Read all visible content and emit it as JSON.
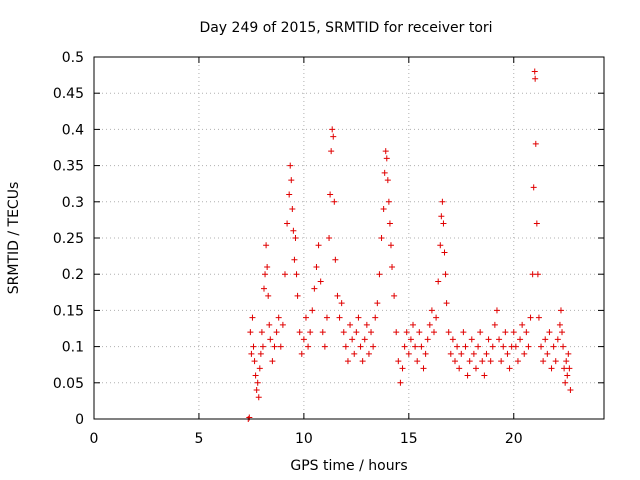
{
  "chart_data": {
    "type": "scatter",
    "title": "Day 249 of 2015, SRMTID for receiver tori",
    "xlabel": "GPS time / hours",
    "ylabel": "SRMTID / TECUs",
    "xlim": [
      0,
      24.3
    ],
    "ylim": [
      0,
      0.5
    ],
    "xticks": [
      "0",
      "5",
      "10",
      "15",
      "20"
    ],
    "xtick_values": [
      0,
      5,
      10,
      15,
      20
    ],
    "yticks": [
      "0",
      "0.05",
      "0.1",
      "0.15",
      "0.2",
      "0.25",
      "0.3",
      "0.35",
      "0.4",
      "0.45",
      "0.5"
    ],
    "ytick_values": [
      0,
      0.05,
      0.1,
      0.15,
      0.2,
      0.25,
      0.3,
      0.35,
      0.4,
      0.45,
      0.5
    ],
    "grid": true,
    "marker": "+",
    "color": "#e00000",
    "series": [
      {
        "points": [
          [
            7.35,
            0.0
          ],
          [
            7.4,
            0.002
          ],
          [
            7.45,
            0.12
          ],
          [
            7.5,
            0.09
          ],
          [
            7.55,
            0.14
          ],
          [
            7.6,
            0.1
          ],
          [
            7.65,
            0.08
          ],
          [
            7.7,
            0.06
          ],
          [
            7.75,
            0.04
          ],
          [
            7.8,
            0.05
          ],
          [
            7.85,
            0.03
          ],
          [
            7.9,
            0.07
          ],
          [
            7.95,
            0.09
          ],
          [
            8.0,
            0.12
          ],
          [
            8.05,
            0.1
          ],
          [
            8.1,
            0.18
          ],
          [
            8.15,
            0.2
          ],
          [
            8.2,
            0.24
          ],
          [
            8.25,
            0.21
          ],
          [
            8.3,
            0.17
          ],
          [
            8.35,
            0.13
          ],
          [
            8.4,
            0.11
          ],
          [
            8.5,
            0.08
          ],
          [
            8.6,
            0.1
          ],
          [
            8.7,
            0.12
          ],
          [
            8.8,
            0.14
          ],
          [
            8.9,
            0.1
          ],
          [
            9.0,
            0.13
          ],
          [
            9.1,
            0.2
          ],
          [
            9.2,
            0.27
          ],
          [
            9.3,
            0.31
          ],
          [
            9.35,
            0.35
          ],
          [
            9.4,
            0.33
          ],
          [
            9.45,
            0.29
          ],
          [
            9.5,
            0.26
          ],
          [
            9.55,
            0.22
          ],
          [
            9.6,
            0.25
          ],
          [
            9.65,
            0.2
          ],
          [
            9.7,
            0.17
          ],
          [
            9.8,
            0.12
          ],
          [
            9.9,
            0.09
          ],
          [
            10.0,
            0.11
          ],
          [
            10.1,
            0.14
          ],
          [
            10.2,
            0.1
          ],
          [
            10.3,
            0.12
          ],
          [
            10.4,
            0.15
          ],
          [
            10.5,
            0.18
          ],
          [
            10.6,
            0.21
          ],
          [
            10.7,
            0.24
          ],
          [
            10.8,
            0.19
          ],
          [
            10.9,
            0.12
          ],
          [
            11.0,
            0.1
          ],
          [
            11.1,
            0.14
          ],
          [
            11.2,
            0.25
          ],
          [
            11.25,
            0.31
          ],
          [
            11.3,
            0.37
          ],
          [
            11.35,
            0.4
          ],
          [
            11.4,
            0.39
          ],
          [
            11.45,
            0.3
          ],
          [
            11.5,
            0.22
          ],
          [
            11.6,
            0.17
          ],
          [
            11.7,
            0.14
          ],
          [
            11.8,
            0.16
          ],
          [
            11.9,
            0.12
          ],
          [
            12.0,
            0.1
          ],
          [
            12.1,
            0.08
          ],
          [
            12.2,
            0.13
          ],
          [
            12.3,
            0.11
          ],
          [
            12.4,
            0.09
          ],
          [
            12.5,
            0.12
          ],
          [
            12.6,
            0.14
          ],
          [
            12.7,
            0.1
          ],
          [
            12.8,
            0.08
          ],
          [
            12.9,
            0.11
          ],
          [
            13.0,
            0.13
          ],
          [
            13.1,
            0.09
          ],
          [
            13.2,
            0.12
          ],
          [
            13.3,
            0.1
          ],
          [
            13.4,
            0.14
          ],
          [
            13.5,
            0.16
          ],
          [
            13.6,
            0.2
          ],
          [
            13.7,
            0.25
          ],
          [
            13.8,
            0.29
          ],
          [
            13.85,
            0.34
          ],
          [
            13.9,
            0.37
          ],
          [
            13.95,
            0.36
          ],
          [
            14.0,
            0.33
          ],
          [
            14.05,
            0.3
          ],
          [
            14.1,
            0.27
          ],
          [
            14.15,
            0.24
          ],
          [
            14.2,
            0.21
          ],
          [
            14.3,
            0.17
          ],
          [
            14.4,
            0.12
          ],
          [
            14.5,
            0.08
          ],
          [
            14.6,
            0.05
          ],
          [
            14.7,
            0.07
          ],
          [
            14.8,
            0.1
          ],
          [
            14.9,
            0.12
          ],
          [
            15.0,
            0.09
          ],
          [
            15.1,
            0.11
          ],
          [
            15.2,
            0.13
          ],
          [
            15.3,
            0.1
          ],
          [
            15.4,
            0.08
          ],
          [
            15.5,
            0.12
          ],
          [
            15.6,
            0.1
          ],
          [
            15.7,
            0.07
          ],
          [
            15.8,
            0.09
          ],
          [
            15.9,
            0.11
          ],
          [
            16.0,
            0.13
          ],
          [
            16.1,
            0.15
          ],
          [
            16.2,
            0.12
          ],
          [
            16.3,
            0.14
          ],
          [
            16.4,
            0.19
          ],
          [
            16.5,
            0.24
          ],
          [
            16.55,
            0.28
          ],
          [
            16.6,
            0.3
          ],
          [
            16.65,
            0.27
          ],
          [
            16.7,
            0.23
          ],
          [
            16.75,
            0.2
          ],
          [
            16.8,
            0.16
          ],
          [
            16.9,
            0.12
          ],
          [
            17.0,
            0.09
          ],
          [
            17.1,
            0.11
          ],
          [
            17.2,
            0.08
          ],
          [
            17.3,
            0.1
          ],
          [
            17.4,
            0.07
          ],
          [
            17.5,
            0.09
          ],
          [
            17.6,
            0.12
          ],
          [
            17.7,
            0.1
          ],
          [
            17.8,
            0.06
          ],
          [
            17.9,
            0.08
          ],
          [
            18.0,
            0.11
          ],
          [
            18.1,
            0.09
          ],
          [
            18.2,
            0.07
          ],
          [
            18.3,
            0.1
          ],
          [
            18.4,
            0.12
          ],
          [
            18.5,
            0.08
          ],
          [
            18.6,
            0.06
          ],
          [
            18.7,
            0.09
          ],
          [
            18.8,
            0.11
          ],
          [
            18.9,
            0.08
          ],
          [
            19.0,
            0.1
          ],
          [
            19.1,
            0.13
          ],
          [
            19.2,
            0.15
          ],
          [
            19.3,
            0.11
          ],
          [
            19.4,
            0.08
          ],
          [
            19.5,
            0.1
          ],
          [
            19.6,
            0.12
          ],
          [
            19.7,
            0.09
          ],
          [
            19.8,
            0.07
          ],
          [
            19.9,
            0.1
          ],
          [
            20.0,
            0.12
          ],
          [
            20.1,
            0.1
          ],
          [
            20.2,
            0.08
          ],
          [
            20.3,
            0.11
          ],
          [
            20.4,
            0.13
          ],
          [
            20.5,
            0.09
          ],
          [
            20.6,
            0.12
          ],
          [
            20.7,
            0.1
          ],
          [
            20.8,
            0.14
          ],
          [
            20.9,
            0.2
          ],
          [
            20.95,
            0.32
          ],
          [
            21.0,
            0.48
          ],
          [
            21.02,
            0.47
          ],
          [
            21.05,
            0.38
          ],
          [
            21.1,
            0.27
          ],
          [
            21.15,
            0.2
          ],
          [
            21.2,
            0.14
          ],
          [
            21.3,
            0.1
          ],
          [
            21.4,
            0.08
          ],
          [
            21.5,
            0.11
          ],
          [
            21.6,
            0.09
          ],
          [
            21.7,
            0.12
          ],
          [
            21.8,
            0.07
          ],
          [
            21.9,
            0.1
          ],
          [
            22.0,
            0.08
          ],
          [
            22.1,
            0.11
          ],
          [
            22.2,
            0.13
          ],
          [
            22.25,
            0.15
          ],
          [
            22.3,
            0.12
          ],
          [
            22.35,
            0.1
          ],
          [
            22.4,
            0.07
          ],
          [
            22.45,
            0.05
          ],
          [
            22.5,
            0.08
          ],
          [
            22.55,
            0.06
          ],
          [
            22.6,
            0.09
          ],
          [
            22.65,
            0.07
          ],
          [
            22.7,
            0.04
          ]
        ]
      }
    ]
  }
}
